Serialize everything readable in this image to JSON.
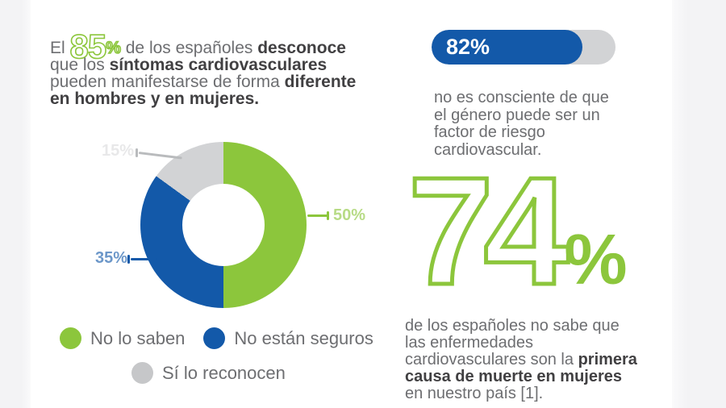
{
  "colors": {
    "green": "#8cc63c",
    "blue": "#1359a9",
    "gray": "#d2d3d5",
    "text": "#6d6e71",
    "text_bold": "#414042"
  },
  "headline": {
    "prefix": "El ",
    "stat_value": "85",
    "stat_unit": "%",
    "s1": " de los españoles ",
    "b1": "desconoce",
    "s2": " que los ",
    "b2": "síntomas cardiovasculares",
    "s3": " pueden manifestarse de forma ",
    "b3": "diferente",
    "s4": " ",
    "b4": "en hombres y en mujeres."
  },
  "chart_data": [
    {
      "type": "pie",
      "donut": true,
      "title": "",
      "labels": [
        "No lo saben",
        "No están seguros",
        "Sí lo reconocen"
      ],
      "values": [
        50,
        35,
        15
      ],
      "value_labels": [
        "50%",
        "35%",
        "15%"
      ],
      "colors": [
        "#8cc63c",
        "#1359a9",
        "#d2d3d5"
      ],
      "start_angle_deg": 0,
      "direction": "clockwise",
      "legend_position": "bottom"
    },
    {
      "type": "bar",
      "categories": [
        "no es consciente de que el género puede ser un factor de riesgo cardiovascular."
      ],
      "values": [
        82
      ],
      "value_labels": [
        "82%"
      ],
      "xlim": [
        0,
        100
      ],
      "bar_color": "#1359a9",
      "track_color": "#d2d3d5"
    }
  ],
  "risk_bar": {
    "label": "82%",
    "description": "no es consciente de que el género puede ser un factor de riesgo cardiovascular."
  },
  "legend": {
    "items": [
      {
        "label": "No lo saben",
        "color": "#8cc63c"
      },
      {
        "label": "No están seguros",
        "color": "#1359a9"
      },
      {
        "label": "Sí lo reconocen",
        "color": "#c6c7c9"
      }
    ]
  },
  "big_stat": {
    "value": "74",
    "unit": "%",
    "d1": "de los españoles no sabe que las enfermedades cardiovasculares son la ",
    "b1": "primera causa de muerte en mujeres",
    "d2": " en nuestro país [1]."
  }
}
